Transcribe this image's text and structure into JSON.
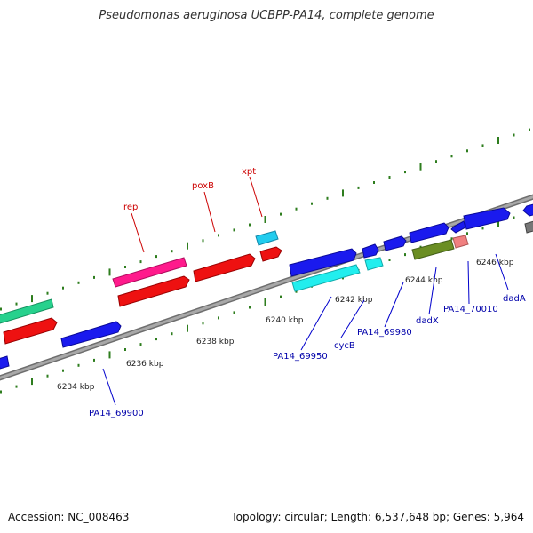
{
  "title": "Pseudomonas aeruginosa UCBPP-PA14, complete genome",
  "accession": "Accession: NC_008463",
  "summary": "Topology: circular; Length: 6,537,648 bp; Genes: 5,964",
  "colors": {
    "backbone": "#8a8a8a",
    "tick": "#2e7d1e",
    "label_top": "#cc0000",
    "label_bottom": "#0000aa",
    "leader_top": "#cc0000",
    "leader_bottom": "#0000cc"
  },
  "ticks": [
    {
      "label": "6234 kbp"
    },
    {
      "label": "6236 kbp"
    },
    {
      "label": "6238 kbp"
    },
    {
      "label": "6240 kbp"
    },
    {
      "label": "6242 kbp"
    },
    {
      "label": "6244 kbp"
    },
    {
      "label": "6246 kbp"
    }
  ],
  "labels_top": [
    {
      "text": "rep"
    },
    {
      "text": "poxB"
    },
    {
      "text": "xpt"
    }
  ],
  "labels_bottom": [
    {
      "text": "PA14_69900"
    },
    {
      "text": "PA14_69950"
    },
    {
      "text": "cycB"
    },
    {
      "text": "PA14_69980"
    },
    {
      "text": "dadX"
    },
    {
      "text": "PA14_70010"
    },
    {
      "text": "dadA"
    }
  ]
}
